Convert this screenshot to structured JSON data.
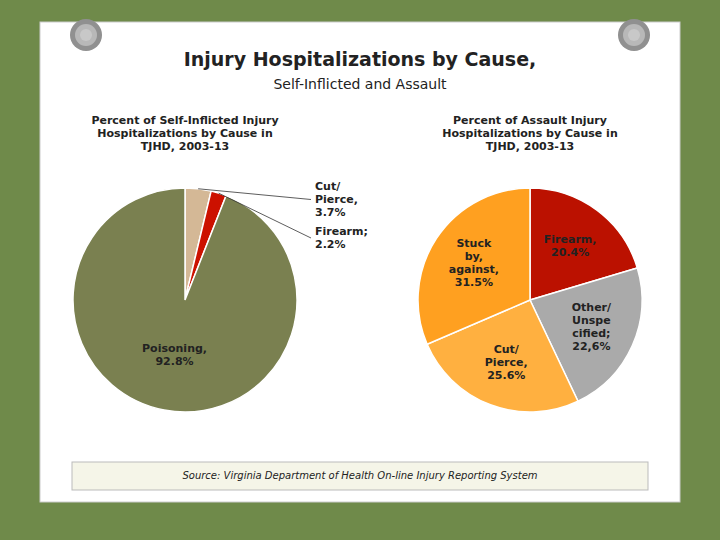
{
  "title": "Injury Hospitalizations by Cause,",
  "subtitle": "Self-Inflicted and Assault",
  "annotations": [
    "Source: Virginia Department of Health On-line Injury Reporting System"
  ],
  "chart_data": [
    {
      "type": "pie",
      "title": "Percent of Self-Inflicted Injury\nHospitalizations by Cause in\nTJHD, 2003-13",
      "values": [
        3.7,
        2.2,
        92.8
      ],
      "colors": [
        "#D4B896",
        "#CC1100",
        "#7A8050"
      ],
      "value_labels": [
        "Cut/\nPierce,\n3.7%",
        "Firearm;\n2.2%",
        "Poisoning,\n92.8%"
      ],
      "data_labels": true
    },
    {
      "type": "pie",
      "title": "Percent of Assault Injury\nHospitalizations by Cause in\nTJHD, 2003-13",
      "values": [
        20.4,
        22.6,
        25.6,
        31.5
      ],
      "colors": [
        "#BB1100",
        "#AAAAAA",
        "#FFB040",
        "#FFA020"
      ],
      "value_labels": [
        "Firearm,\n20.4%",
        "Other/\nUnspe\ncified;\n22,6%",
        "Cut/\nPierce,\n25.6%",
        "Stuck\nby,\nagainst,\n31.5%"
      ],
      "data_labels": true
    }
  ]
}
